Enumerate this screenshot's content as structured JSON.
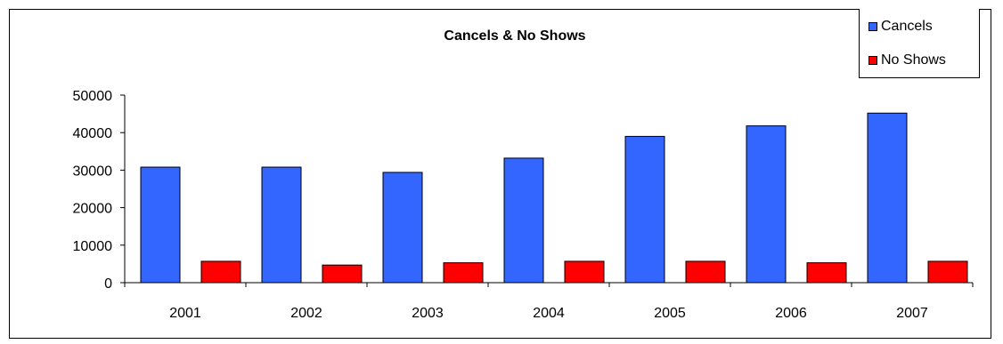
{
  "chart_data": {
    "type": "bar",
    "title": "Cancels & No Shows",
    "categories": [
      "2001",
      "2002",
      "2003",
      "2004",
      "2005",
      "2006",
      "2007"
    ],
    "series": [
      {
        "name": "Cancels",
        "color": "#3366FF",
        "values": [
          30800,
          30800,
          29400,
          33200,
          39000,
          41800,
          45200
        ]
      },
      {
        "name": "No Shows",
        "color": "#FF0000",
        "values": [
          5700,
          4700,
          5300,
          5700,
          5700,
          5300,
          5700
        ]
      }
    ],
    "ylim": [
      0,
      50000
    ],
    "yticks": [
      0,
      10000,
      20000,
      30000,
      40000,
      50000
    ],
    "legend_position": "top-right",
    "grid": false,
    "xlabel": "",
    "ylabel": ""
  }
}
